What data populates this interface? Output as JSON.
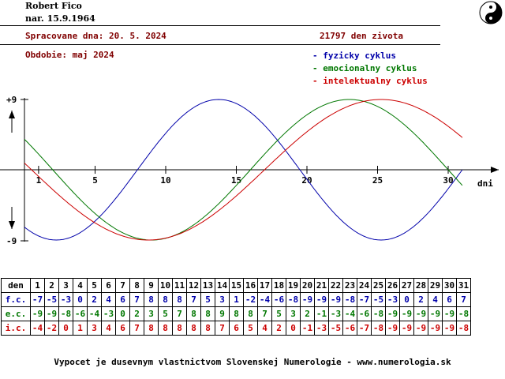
{
  "header": {
    "name": "Robert Fico",
    "birth": "nar. 15.9.1964",
    "processed": "Spracovane dna: 20. 5. 2024",
    "days_alive": "21797  den zivota",
    "period": "Obdobie: maj 2024"
  },
  "legend": [
    {
      "label": "- fyzicky cyklus",
      "color": "#0000aa"
    },
    {
      "label": "- emocionalny cyklus",
      "color": "#007700"
    },
    {
      "label": "- intelektualny cyklus",
      "color": "#cc0000"
    }
  ],
  "chart_data": {
    "type": "line",
    "x_tick_labels": [
      "1",
      "5",
      "10",
      "15",
      "20",
      "25",
      "30"
    ],
    "x_ticks": [
      1,
      5,
      10,
      15,
      20,
      25,
      30
    ],
    "x_range": [
      0,
      31
    ],
    "xlabel": "dni",
    "y_tick_labels": [
      "+9",
      "-9"
    ],
    "y_range": [
      -9,
      9
    ],
    "series": [
      {
        "key": "physical",
        "color": "#0000aa",
        "period_days": 23,
        "start_phase": 21797,
        "values": [
          -7,
          -5,
          -3,
          0,
          2,
          4,
          6,
          7,
          8,
          8,
          8,
          7,
          5,
          3,
          1,
          -2,
          -4,
          -6,
          -8,
          -9,
          -9,
          -9,
          -8,
          -7,
          -5,
          -3,
          0,
          2,
          4,
          6,
          7
        ]
      },
      {
        "key": "emotional",
        "color": "#007700",
        "period_days": 28,
        "start_phase": 21797,
        "values": [
          -9,
          -9,
          -8,
          -6,
          -4,
          -3,
          0,
          2,
          3,
          5,
          7,
          8,
          8,
          9,
          8,
          8,
          7,
          5,
          3,
          2,
          -1,
          -3,
          -4,
          -6,
          -8,
          -9,
          -9,
          -9,
          -9,
          -9,
          -8
        ]
      },
      {
        "key": "intellectual",
        "color": "#cc0000",
        "period_days": 33,
        "start_phase": 21797,
        "values": [
          -4,
          -2,
          0,
          1,
          3,
          4,
          6,
          7,
          8,
          8,
          8,
          8,
          8,
          7,
          6,
          5,
          4,
          2,
          0,
          -1,
          -3,
          -5,
          -6,
          -7,
          -8,
          -9,
          -9,
          -9,
          -9,
          -9,
          -8
        ]
      }
    ]
  },
  "table": {
    "header_label": "den",
    "days": [
      "1",
      "2",
      "3",
      "4",
      "5",
      "6",
      "7",
      "8",
      "9",
      "10",
      "11",
      "12",
      "13",
      "14",
      "15",
      "16",
      "17",
      "18",
      "19",
      "20",
      "21",
      "22",
      "23",
      "24",
      "25",
      "26",
      "27",
      "28",
      "29",
      "30",
      "31"
    ],
    "rows": [
      {
        "label": "f.c.",
        "color": "#0000aa",
        "values": [
          "-7",
          "-5",
          "-3",
          "0",
          "2",
          "4",
          "6",
          "7",
          "8",
          "8",
          "8",
          "7",
          "5",
          "3",
          "1",
          "-2",
          "-4",
          "-6",
          "-8",
          "-9",
          "-9",
          "-9",
          "-8",
          "-7",
          "-5",
          "-3",
          "0",
          "2",
          "4",
          "6",
          "7"
        ]
      },
      {
        "label": "e.c.",
        "color": "#007700",
        "values": [
          "-9",
          "-9",
          "-8",
          "-6",
          "-4",
          "-3",
          "0",
          "2",
          "3",
          "5",
          "7",
          "8",
          "8",
          "9",
          "8",
          "8",
          "7",
          "5",
          "3",
          "2",
          "-1",
          "-3",
          "-4",
          "-6",
          "-8",
          "-9",
          "-9",
          "-9",
          "-9",
          "-9",
          "-8"
        ]
      },
      {
        "label": "i.c.",
        "color": "#cc0000",
        "values": [
          "-4",
          "-2",
          "0",
          "1",
          "3",
          "4",
          "6",
          "7",
          "8",
          "8",
          "8",
          "8",
          "8",
          "7",
          "6",
          "5",
          "4",
          "2",
          "0",
          "-1",
          "-3",
          "-5",
          "-6",
          "-7",
          "-8",
          "-9",
          "-9",
          "-9",
          "-9",
          "-9",
          "-8"
        ]
      }
    ]
  },
  "footer": "Vypocet je dusevnym vlastnictvom Slovenskej Numerologie - www.numerologia.sk"
}
